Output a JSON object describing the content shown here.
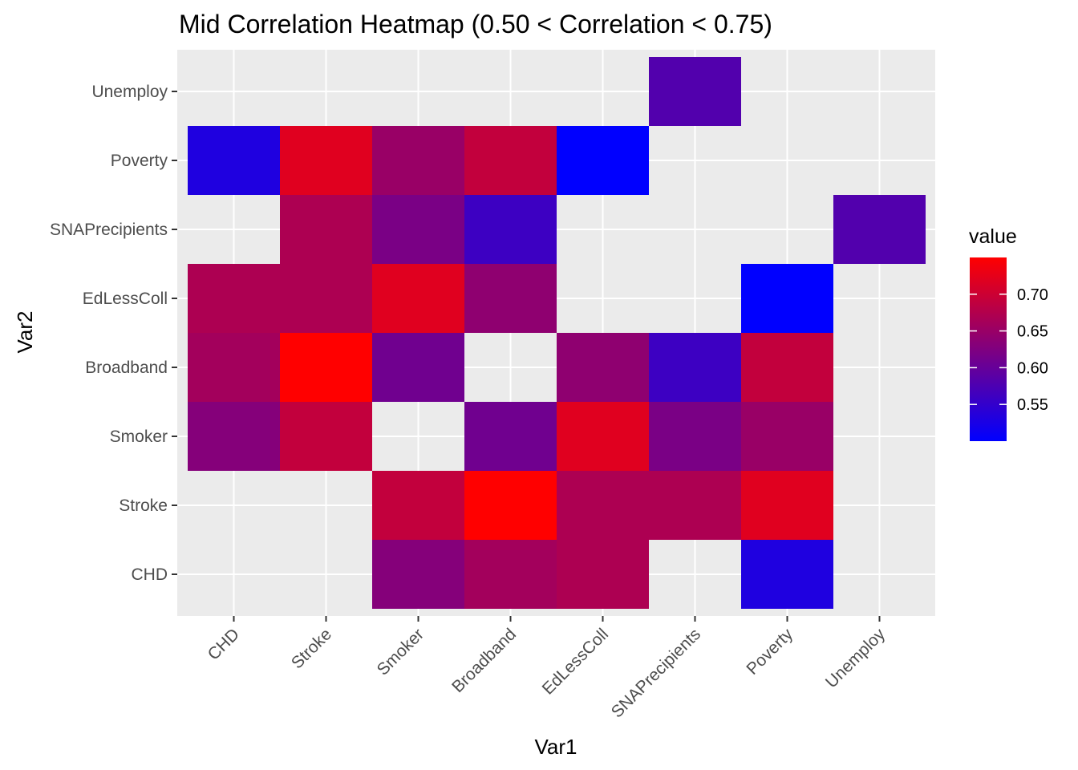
{
  "chart_data": {
    "type": "heatmap",
    "title": "Mid Correlation Heatmap (0.50 < Correlation < 0.75)",
    "xlabel": "Var1",
    "ylabel": "Var2",
    "x_categories": [
      "CHD",
      "Stroke",
      "Smoker",
      "Broadband",
      "EdLessColl",
      "SNAPrecipients",
      "Poverty",
      "Unemploy"
    ],
    "y_categories": [
      "CHD",
      "Stroke",
      "Smoker",
      "Broadband",
      "EdLessColl",
      "SNAPrecipients",
      "Poverty",
      "Unemploy"
    ],
    "cells": [
      {
        "x": "Smoker",
        "y": "CHD",
        "value": 0.63
      },
      {
        "x": "Broadband",
        "y": "CHD",
        "value": 0.66
      },
      {
        "x": "EdLessColl",
        "y": "CHD",
        "value": 0.67
      },
      {
        "x": "Poverty",
        "y": "CHD",
        "value": 0.53
      },
      {
        "x": "Smoker",
        "y": "Stroke",
        "value": 0.69
      },
      {
        "x": "Broadband",
        "y": "Stroke",
        "value": 0.75
      },
      {
        "x": "EdLessColl",
        "y": "Stroke",
        "value": 0.67
      },
      {
        "x": "SNAPrecipients",
        "y": "Stroke",
        "value": 0.67
      },
      {
        "x": "Poverty",
        "y": "Stroke",
        "value": 0.72
      },
      {
        "x": "CHD",
        "y": "Smoker",
        "value": 0.63
      },
      {
        "x": "Stroke",
        "y": "Smoker",
        "value": 0.69
      },
      {
        "x": "Broadband",
        "y": "Smoker",
        "value": 0.61
      },
      {
        "x": "EdLessColl",
        "y": "Smoker",
        "value": 0.72
      },
      {
        "x": "SNAPrecipients",
        "y": "Smoker",
        "value": 0.62
      },
      {
        "x": "Poverty",
        "y": "Smoker",
        "value": 0.65
      },
      {
        "x": "CHD",
        "y": "Broadband",
        "value": 0.66
      },
      {
        "x": "Stroke",
        "y": "Broadband",
        "value": 0.75
      },
      {
        "x": "Smoker",
        "y": "Broadband",
        "value": 0.61
      },
      {
        "x": "EdLessColl",
        "y": "Broadband",
        "value": 0.64
      },
      {
        "x": "SNAPrecipients",
        "y": "Broadband",
        "value": 0.56
      },
      {
        "x": "Poverty",
        "y": "Broadband",
        "value": 0.69
      },
      {
        "x": "CHD",
        "y": "EdLessColl",
        "value": 0.67
      },
      {
        "x": "Stroke",
        "y": "EdLessColl",
        "value": 0.67
      },
      {
        "x": "Smoker",
        "y": "EdLessColl",
        "value": 0.72
      },
      {
        "x": "Broadband",
        "y": "EdLessColl",
        "value": 0.64
      },
      {
        "x": "Poverty",
        "y": "EdLessColl",
        "value": 0.5
      },
      {
        "x": "Stroke",
        "y": "SNAPrecipients",
        "value": 0.67
      },
      {
        "x": "Smoker",
        "y": "SNAPrecipients",
        "value": 0.62
      },
      {
        "x": "Broadband",
        "y": "SNAPrecipients",
        "value": 0.56
      },
      {
        "x": "Unemploy",
        "y": "SNAPrecipients",
        "value": 0.58
      },
      {
        "x": "CHD",
        "y": "Poverty",
        "value": 0.53
      },
      {
        "x": "Stroke",
        "y": "Poverty",
        "value": 0.72
      },
      {
        "x": "Smoker",
        "y": "Poverty",
        "value": 0.65
      },
      {
        "x": "Broadband",
        "y": "Poverty",
        "value": 0.69
      },
      {
        "x": "EdLessColl",
        "y": "Poverty",
        "value": 0.5
      },
      {
        "x": "SNAPrecipients",
        "y": "Unemploy",
        "value": 0.58
      }
    ],
    "legend": {
      "title": "value",
      "position": "right",
      "min": 0.5,
      "max": 0.75,
      "ticks": [
        "0.70",
        "0.65",
        "0.60",
        "0.55"
      ],
      "tick_values": [
        0.7,
        0.65,
        0.6,
        0.55
      ],
      "low_color": "#0000FF",
      "high_color": "#FF0000"
    },
    "panel_background": "#EBEBEB",
    "grid": true,
    "grid_color": "#FFFFFF"
  }
}
